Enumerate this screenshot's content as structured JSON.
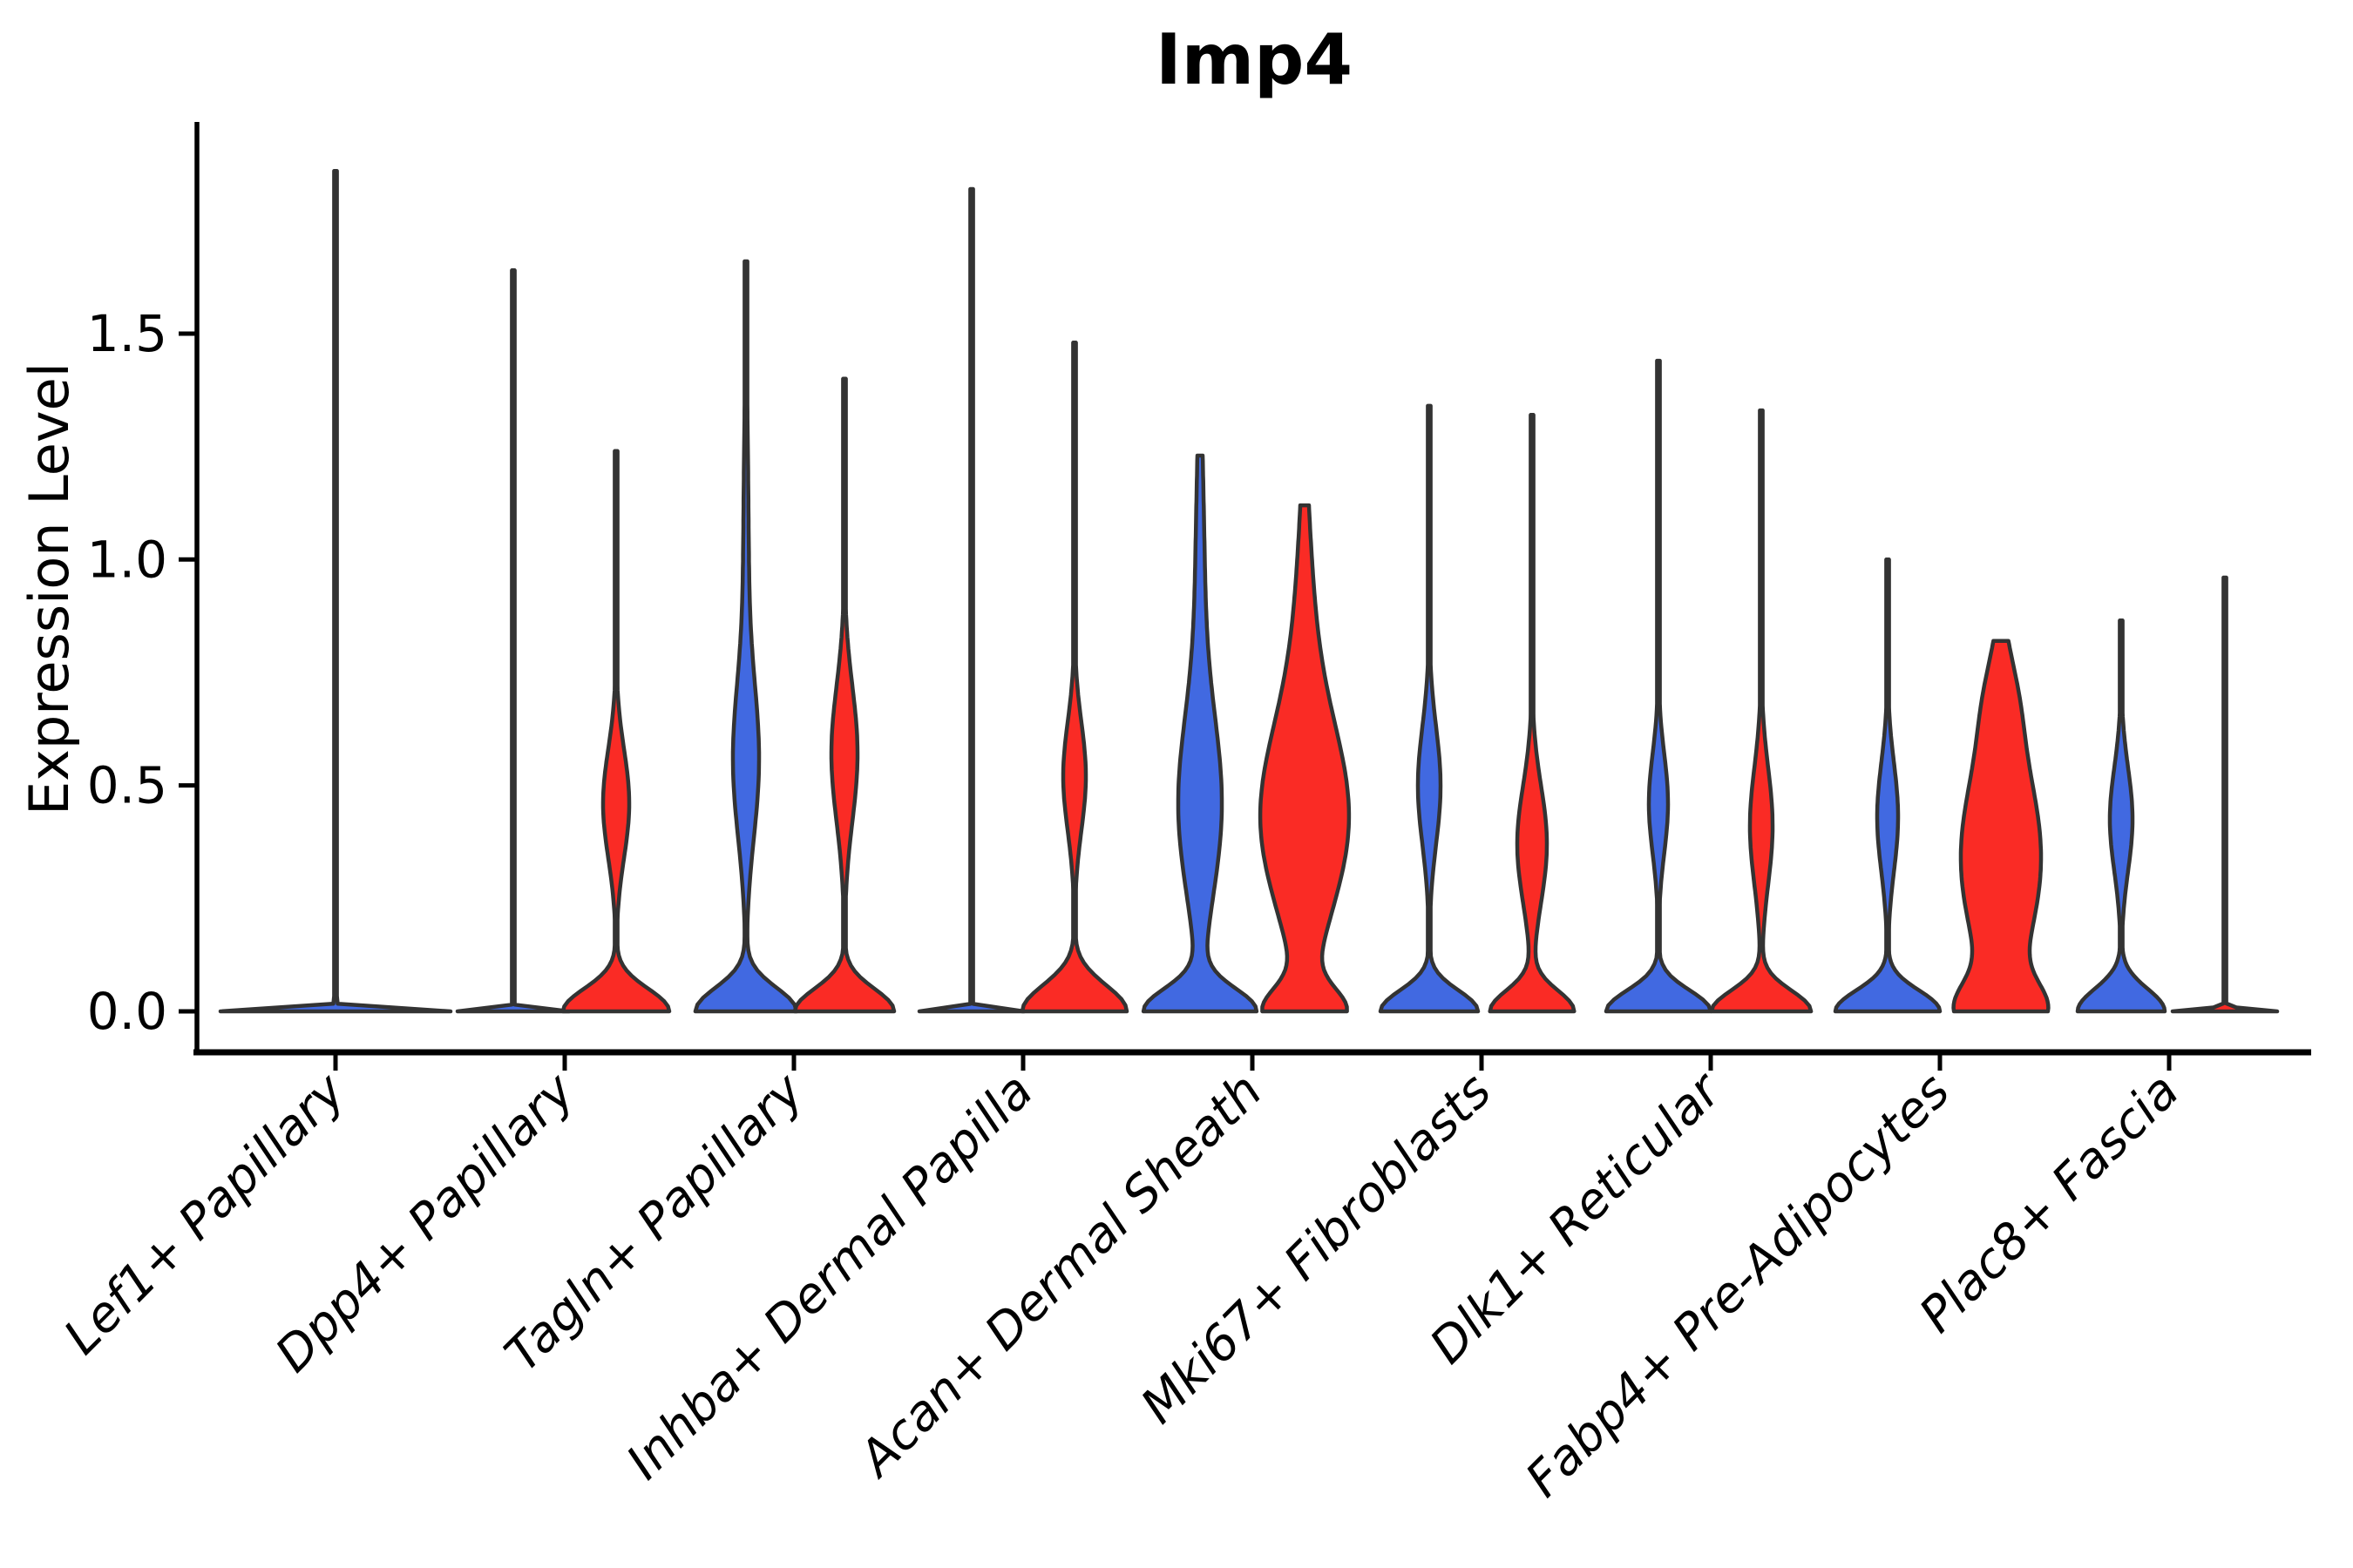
{
  "title": "Imp4",
  "y_axis": {
    "label": "Expression Level",
    "ticks": [
      {
        "label": "0.0",
        "value": 0.0
      },
      {
        "label": "0.5",
        "value": 0.5
      },
      {
        "label": "1.0",
        "value": 1.0
      },
      {
        "label": "1.5",
        "value": 1.5
      }
    ]
  },
  "x_axis": {
    "categories": [
      "Lef1+ Papillary",
      "Dpp4+ Papillary",
      "Tagln+ Papillary",
      "Inhba+ Dermal Papilla",
      "Acan+ Dermal Sheath",
      "Mki67+ Fibroblasts",
      "Dlk1+ Reticular",
      "Fabp4+ Pre-Adipocytes",
      "Plac8+ Fascia"
    ]
  },
  "colors": {
    "blue": "#4169E1",
    "red": "#FA2B25",
    "outline": "#333333",
    "axis": "#000000",
    "text": "#000000",
    "background": "#ffffff"
  },
  "chart_data": {
    "type": "violin",
    "title": "Imp4",
    "xlabel": "",
    "ylabel": "Expression Level",
    "ylim": [
      0,
      1.96
    ],
    "y_ticks": [
      0.0,
      0.5,
      1.0,
      1.5
    ],
    "grid": false,
    "legend": "none",
    "categories": [
      "Lef1+ Papillary",
      "Dpp4+ Papillary",
      "Tagln+ Papillary",
      "Inhba+ Dermal Papilla",
      "Acan+ Dermal Sheath",
      "Mki67+ Fibroblasts",
      "Dlk1+ Reticular",
      "Fabp4+ Pre-Adipocytes",
      "Plac8+ Fascia"
    ],
    "series": [
      {
        "name": "blue",
        "color_key": "blue",
        "max_expression": [
          1.86,
          1.64,
          1.66,
          1.82,
          1.23,
          1.34,
          1.44,
          1.0,
          0.86
        ],
        "mode_expression": [
          0,
          0,
          0,
          0,
          0,
          0,
          0,
          0,
          0
        ]
      },
      {
        "name": "red",
        "color_key": "red",
        "max_expression": [
          null,
          1.24,
          1.4,
          1.48,
          1.12,
          1.32,
          1.33,
          0.82,
          0.96
        ],
        "mode_expression": [
          null,
          0,
          0,
          0,
          0,
          0,
          0,
          0,
          0
        ]
      }
    ],
    "violins": [
      {
        "cat": 0,
        "dx": 0,
        "color": "blue",
        "max": 1.86,
        "flat_top": false,
        "components": [
          [
            0,
            0.006,
            132
          ]
        ]
      },
      {
        "cat": 1,
        "dx": -59,
        "color": "blue",
        "max": 1.64,
        "flat_top": false,
        "components": [
          [
            0,
            0.005,
            64
          ]
        ]
      },
      {
        "cat": 1,
        "dx": 59,
        "color": "red",
        "max": 1.24,
        "flat_top": false,
        "components": [
          [
            0,
            0.05,
            61
          ],
          [
            0.46,
            0.12,
            15
          ]
        ]
      },
      {
        "cat": 2,
        "dx": -55,
        "color": "blue",
        "max": 1.66,
        "flat_top": false,
        "components": [
          [
            0,
            0.052,
            58
          ],
          [
            0.55,
            0.17,
            14
          ],
          [
            1.0,
            0.3,
            3
          ]
        ]
      },
      {
        "cat": 2,
        "dx": 58,
        "color": "red",
        "max": 1.4,
        "flat_top": false,
        "components": [
          [
            0,
            0.05,
            57
          ],
          [
            0.57,
            0.15,
            15
          ]
        ]
      },
      {
        "cat": 3,
        "dx": -59,
        "color": "blue",
        "max": 1.82,
        "flat_top": false,
        "components": [
          [
            0,
            0.005,
            60
          ]
        ]
      },
      {
        "cat": 3,
        "dx": 59,
        "color": "red",
        "max": 1.48,
        "flat_top": false,
        "components": [
          [
            0,
            0.058,
            60
          ],
          [
            0.52,
            0.12,
            13
          ]
        ]
      },
      {
        "cat": 4,
        "dx": -60,
        "color": "blue",
        "max": 1.23,
        "flat_top": false,
        "components": [
          [
            0,
            0.05,
            63
          ],
          [
            0.45,
            0.2,
            24
          ],
          [
            0.95,
            0.28,
            5
          ]
        ]
      },
      {
        "cat": 4,
        "dx": 60,
        "color": "red",
        "max": 1.12,
        "flat_top": false,
        "components": [
          [
            0,
            0.05,
            42
          ],
          [
            0.42,
            0.21,
            49
          ],
          [
            0.85,
            0.24,
            9
          ]
        ]
      },
      {
        "cat": 5,
        "dx": -60,
        "color": "blue",
        "max": 1.34,
        "flat_top": false,
        "components": [
          [
            0,
            0.046,
            56
          ],
          [
            0.5,
            0.13,
            13
          ]
        ]
      },
      {
        "cat": 5,
        "dx": 58,
        "color": "red",
        "max": 1.32,
        "flat_top": false,
        "components": [
          [
            0,
            0.046,
            48
          ],
          [
            0.37,
            0.13,
            17
          ]
        ]
      },
      {
        "cat": 6,
        "dx": -60,
        "color": "blue",
        "max": 1.44,
        "flat_top": false,
        "components": [
          [
            0,
            0.046,
            60
          ],
          [
            0.46,
            0.11,
            11
          ]
        ]
      },
      {
        "cat": 6,
        "dx": 58,
        "color": "red",
        "max": 1.33,
        "flat_top": false,
        "components": [
          [
            0,
            0.046,
            57
          ],
          [
            0.41,
            0.13,
            13
          ]
        ]
      },
      {
        "cat": 7,
        "dx": -60,
        "color": "blue",
        "max": 1.0,
        "flat_top": false,
        "components": [
          [
            0,
            0.046,
            60
          ],
          [
            0.43,
            0.12,
            12
          ]
        ]
      },
      {
        "cat": 7,
        "dx": 70,
        "color": "red",
        "max": 0.82,
        "flat_top": true,
        "components": [
          [
            0,
            0.06,
            40
          ],
          [
            0.34,
            0.22,
            46
          ],
          [
            0.7,
            0.1,
            9
          ]
        ]
      },
      {
        "cat": 8,
        "dx": -55,
        "color": "blue",
        "max": 0.865,
        "flat_top": false,
        "components": [
          [
            0,
            0.05,
            50
          ],
          [
            0.425,
            0.115,
            13
          ]
        ]
      },
      {
        "cat": 8,
        "dx": 64,
        "color": "red",
        "max": 0.96,
        "flat_top": false,
        "components": [
          [
            0,
            0.005,
            60
          ]
        ]
      }
    ]
  }
}
